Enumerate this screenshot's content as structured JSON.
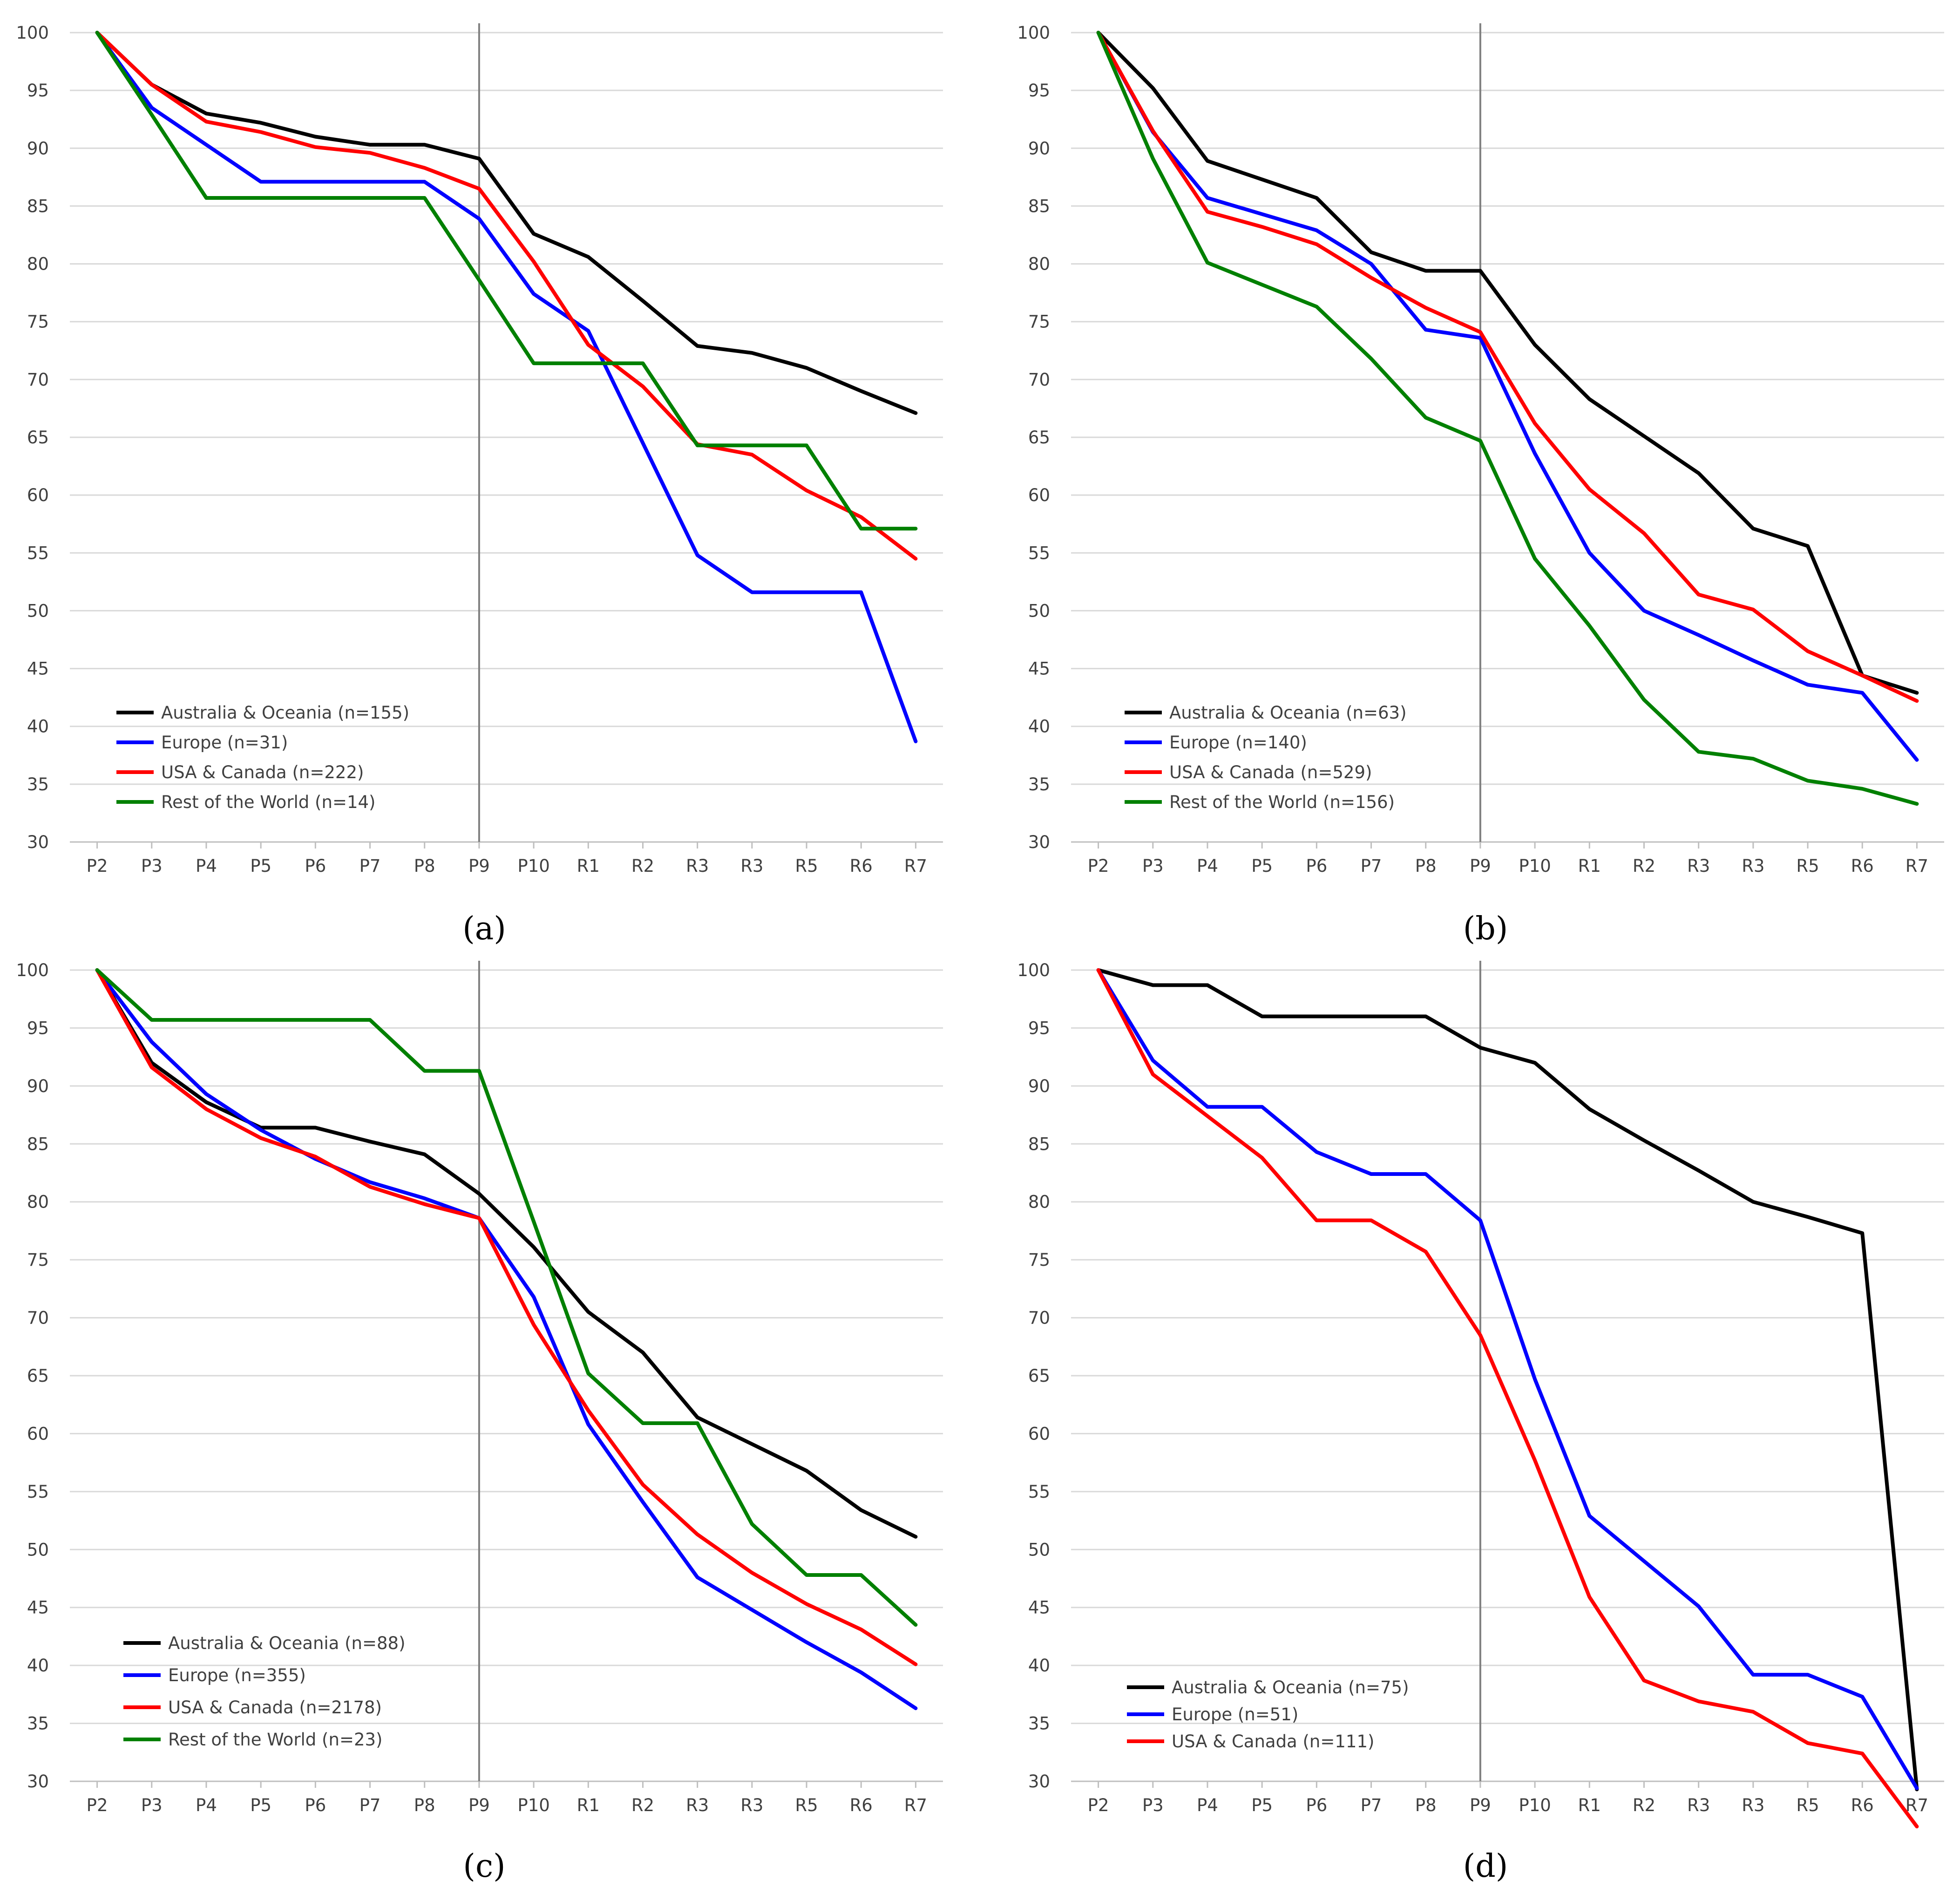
{
  "chart_data": [
    {
      "type": "line",
      "panel": "a",
      "label": "(a)",
      "categories": [
        "P2",
        "P3",
        "P4",
        "P5",
        "P6",
        "P7",
        "P8",
        "P9",
        "P10",
        "R1",
        "R2",
        "R3",
        "R3",
        "R5",
        "R6",
        "R7"
      ],
      "ylim": [
        30,
        100
      ],
      "yticks": [
        30,
        35,
        40,
        45,
        50,
        55,
        60,
        65,
        70,
        75,
        80,
        85,
        90,
        95,
        100
      ],
      "ytick_labels": [
        "30",
        "35",
        "40",
        "45",
        "50",
        "55",
        "60",
        "65",
        "70",
        "75",
        "80",
        "85",
        "90",
        "95",
        "100"
      ],
      "vline_category": "P9",
      "grid": true,
      "legend_location": "bottom-left",
      "series": [
        {
          "name": "Australia & Oceania (n=155)",
          "color": "#000000",
          "values": [
            100,
            95.5,
            93,
            92.2,
            91,
            90.3,
            90.3,
            89.1,
            82.6,
            80.6,
            76.8,
            72.9,
            72.3,
            71,
            69,
            67.1
          ]
        },
        {
          "name": "Europe (n=31)",
          "color": "#0000ff",
          "values": [
            100,
            93.5,
            90.3,
            87.1,
            87.1,
            87.1,
            87.1,
            83.9,
            77.4,
            74.2,
            64.5,
            54.8,
            51.6,
            51.6,
            51.6,
            38.7
          ]
        },
        {
          "name": "USA & Canada (n=222)",
          "color": "#ff0000",
          "values": [
            100,
            95.5,
            92.3,
            91.4,
            90.1,
            89.6,
            88.3,
            86.5,
            80.2,
            73,
            69.4,
            64.4,
            63.5,
            60.4,
            58.1,
            54.5
          ]
        },
        {
          "name": "Rest of the World (n=14)",
          "color": "#008000",
          "values": [
            100,
            92.9,
            85.7,
            85.7,
            85.7,
            85.7,
            85.7,
            78.6,
            71.4,
            71.4,
            71.4,
            64.3,
            64.3,
            64.3,
            57.1,
            57.1
          ]
        }
      ]
    },
    {
      "type": "line",
      "panel": "b",
      "label": "(b)",
      "categories": [
        "P2",
        "P3",
        "P4",
        "P5",
        "P6",
        "P7",
        "P8",
        "P9",
        "P10",
        "R1",
        "R2",
        "R3",
        "R3",
        "R5",
        "R6",
        "R7"
      ],
      "ylim": [
        30,
        100
      ],
      "yticks": [
        30,
        35,
        40,
        45,
        50,
        55,
        60,
        65,
        70,
        75,
        80,
        85,
        90,
        95,
        100
      ],
      "ytick_labels": [
        "30",
        "35",
        "40",
        "45",
        "50",
        "55",
        "60",
        "65",
        "70",
        "75",
        "80",
        "85",
        "90",
        "95",
        "100"
      ],
      "vline_category": "P9",
      "grid": true,
      "legend_location": "bottom-left",
      "series": [
        {
          "name": "Australia & Oceania (n=63)",
          "color": "#000000",
          "values": [
            100,
            95.2,
            88.9,
            87.3,
            85.7,
            81,
            79.4,
            79.4,
            73,
            68.3,
            65.1,
            61.9,
            57.1,
            55.6,
            44.4,
            42.9
          ]
        },
        {
          "name": "Europe (n=140)",
          "color": "#0000ff",
          "values": [
            100,
            91.4,
            85.7,
            84.3,
            82.9,
            80,
            74.3,
            73.6,
            63.6,
            55,
            50,
            47.9,
            45.7,
            43.6,
            42.9,
            37.1
          ]
        },
        {
          "name": "USA & Canada (n=529)",
          "color": "#ff0000",
          "values": [
            100,
            91.5,
            84.5,
            83.2,
            81.7,
            78.8,
            76.2,
            74.1,
            66.2,
            60.5,
            56.7,
            51.4,
            50.1,
            46.5,
            44.4,
            42.2
          ]
        },
        {
          "name": "Rest of the World (n=156)",
          "color": "#008000",
          "values": [
            100,
            89.1,
            80.1,
            78.2,
            76.3,
            71.8,
            66.7,
            64.7,
            54.5,
            48.7,
            42.3,
            37.8,
            37.2,
            35.3,
            34.6,
            33.3
          ]
        }
      ]
    },
    {
      "type": "line",
      "panel": "c",
      "label": "(c)",
      "categories": [
        "P2",
        "P3",
        "P4",
        "P5",
        "P6",
        "P7",
        "P8",
        "P9",
        "P10",
        "R1",
        "R2",
        "R3",
        "R3",
        "R5",
        "R6",
        "R7"
      ],
      "ylim": [
        30,
        100
      ],
      "yticks": [
        30,
        35,
        40,
        45,
        50,
        55,
        60,
        65,
        70,
        75,
        80,
        85,
        90,
        95,
        100
      ],
      "ytick_labels": [
        "30",
        "35",
        "40",
        "45",
        "50",
        "55",
        "60",
        "65",
        "70",
        "75",
        "80",
        "85",
        "90",
        "95",
        "100"
      ],
      "vline_category": "P9",
      "grid": true,
      "legend_location": "bottom-left",
      "series": [
        {
          "name": "Australia & Oceania (n=88)",
          "color": "#000000",
          "values": [
            100,
            92,
            88.6,
            86.4,
            86.4,
            85.2,
            84.1,
            80.7,
            76.1,
            70.5,
            67,
            61.4,
            59.1,
            56.8,
            53.4,
            51.1
          ]
        },
        {
          "name": "Europe (n=355)",
          "color": "#0000ff",
          "values": [
            100,
            93.8,
            89.3,
            86.2,
            83.7,
            81.7,
            80.3,
            78.6,
            71.8,
            60.8,
            54.1,
            47.6,
            44.8,
            42,
            39.4,
            36.3
          ]
        },
        {
          "name": "USA & Canada (n=2178)",
          "color": "#ff0000",
          "values": [
            100,
            91.6,
            88,
            85.5,
            83.9,
            81.3,
            79.8,
            78.6,
            69.4,
            62,
            55.6,
            51.3,
            48,
            45.3,
            43.1,
            40.1
          ]
        },
        {
          "name": "Rest of the World (n=23)",
          "color": "#008000",
          "values": [
            100,
            95.7,
            95.7,
            95.7,
            95.7,
            95.7,
            91.3,
            91.3,
            78.3,
            65.2,
            60.9,
            60.9,
            52.2,
            47.8,
            47.8,
            43.5
          ]
        }
      ]
    },
    {
      "type": "line",
      "panel": "d",
      "label": "(d)",
      "categories": [
        "P2",
        "P3",
        "P4",
        "P5",
        "P6",
        "P7",
        "P8",
        "P9",
        "P10",
        "R1",
        "R2",
        "R3",
        "R3",
        "R5",
        "R6",
        "R7"
      ],
      "ylim": [
        30,
        100
      ],
      "yticks": [
        30,
        35,
        40,
        45,
        50,
        55,
        60,
        65,
        70,
        75,
        80,
        85,
        90,
        95,
        100
      ],
      "ytick_labels": [
        "30",
        "35",
        "40",
        "45",
        "50",
        "55",
        "60",
        "65",
        "70",
        "75",
        "80",
        "85",
        "90",
        "95",
        "100"
      ],
      "vline_category": "P9",
      "grid": true,
      "legend_location": "bottom-left",
      "series": [
        {
          "name": "Australia & Oceania (n=75)",
          "color": "#000000",
          "values": [
            100,
            98.7,
            98.7,
            96,
            96,
            96,
            96,
            93.3,
            92,
            88,
            85.3,
            82.7,
            80,
            78.7,
            77.3,
            29.3
          ]
        },
        {
          "name": "Europe (n=51)",
          "color": "#0000ff",
          "values": [
            100,
            92.2,
            88.2,
            88.2,
            84.3,
            82.4,
            82.4,
            78.4,
            64.7,
            52.9,
            49,
            45.1,
            39.2,
            39.2,
            37.3,
            29.4
          ]
        },
        {
          "name": "USA & Canada (n=111)",
          "color": "#ff0000",
          "values": [
            100,
            91,
            87.4,
            83.8,
            78.4,
            78.4,
            75.7,
            68.5,
            57.7,
            45.9,
            38.7,
            36.9,
            36,
            33.3,
            32.4,
            26.1
          ]
        }
      ]
    }
  ]
}
